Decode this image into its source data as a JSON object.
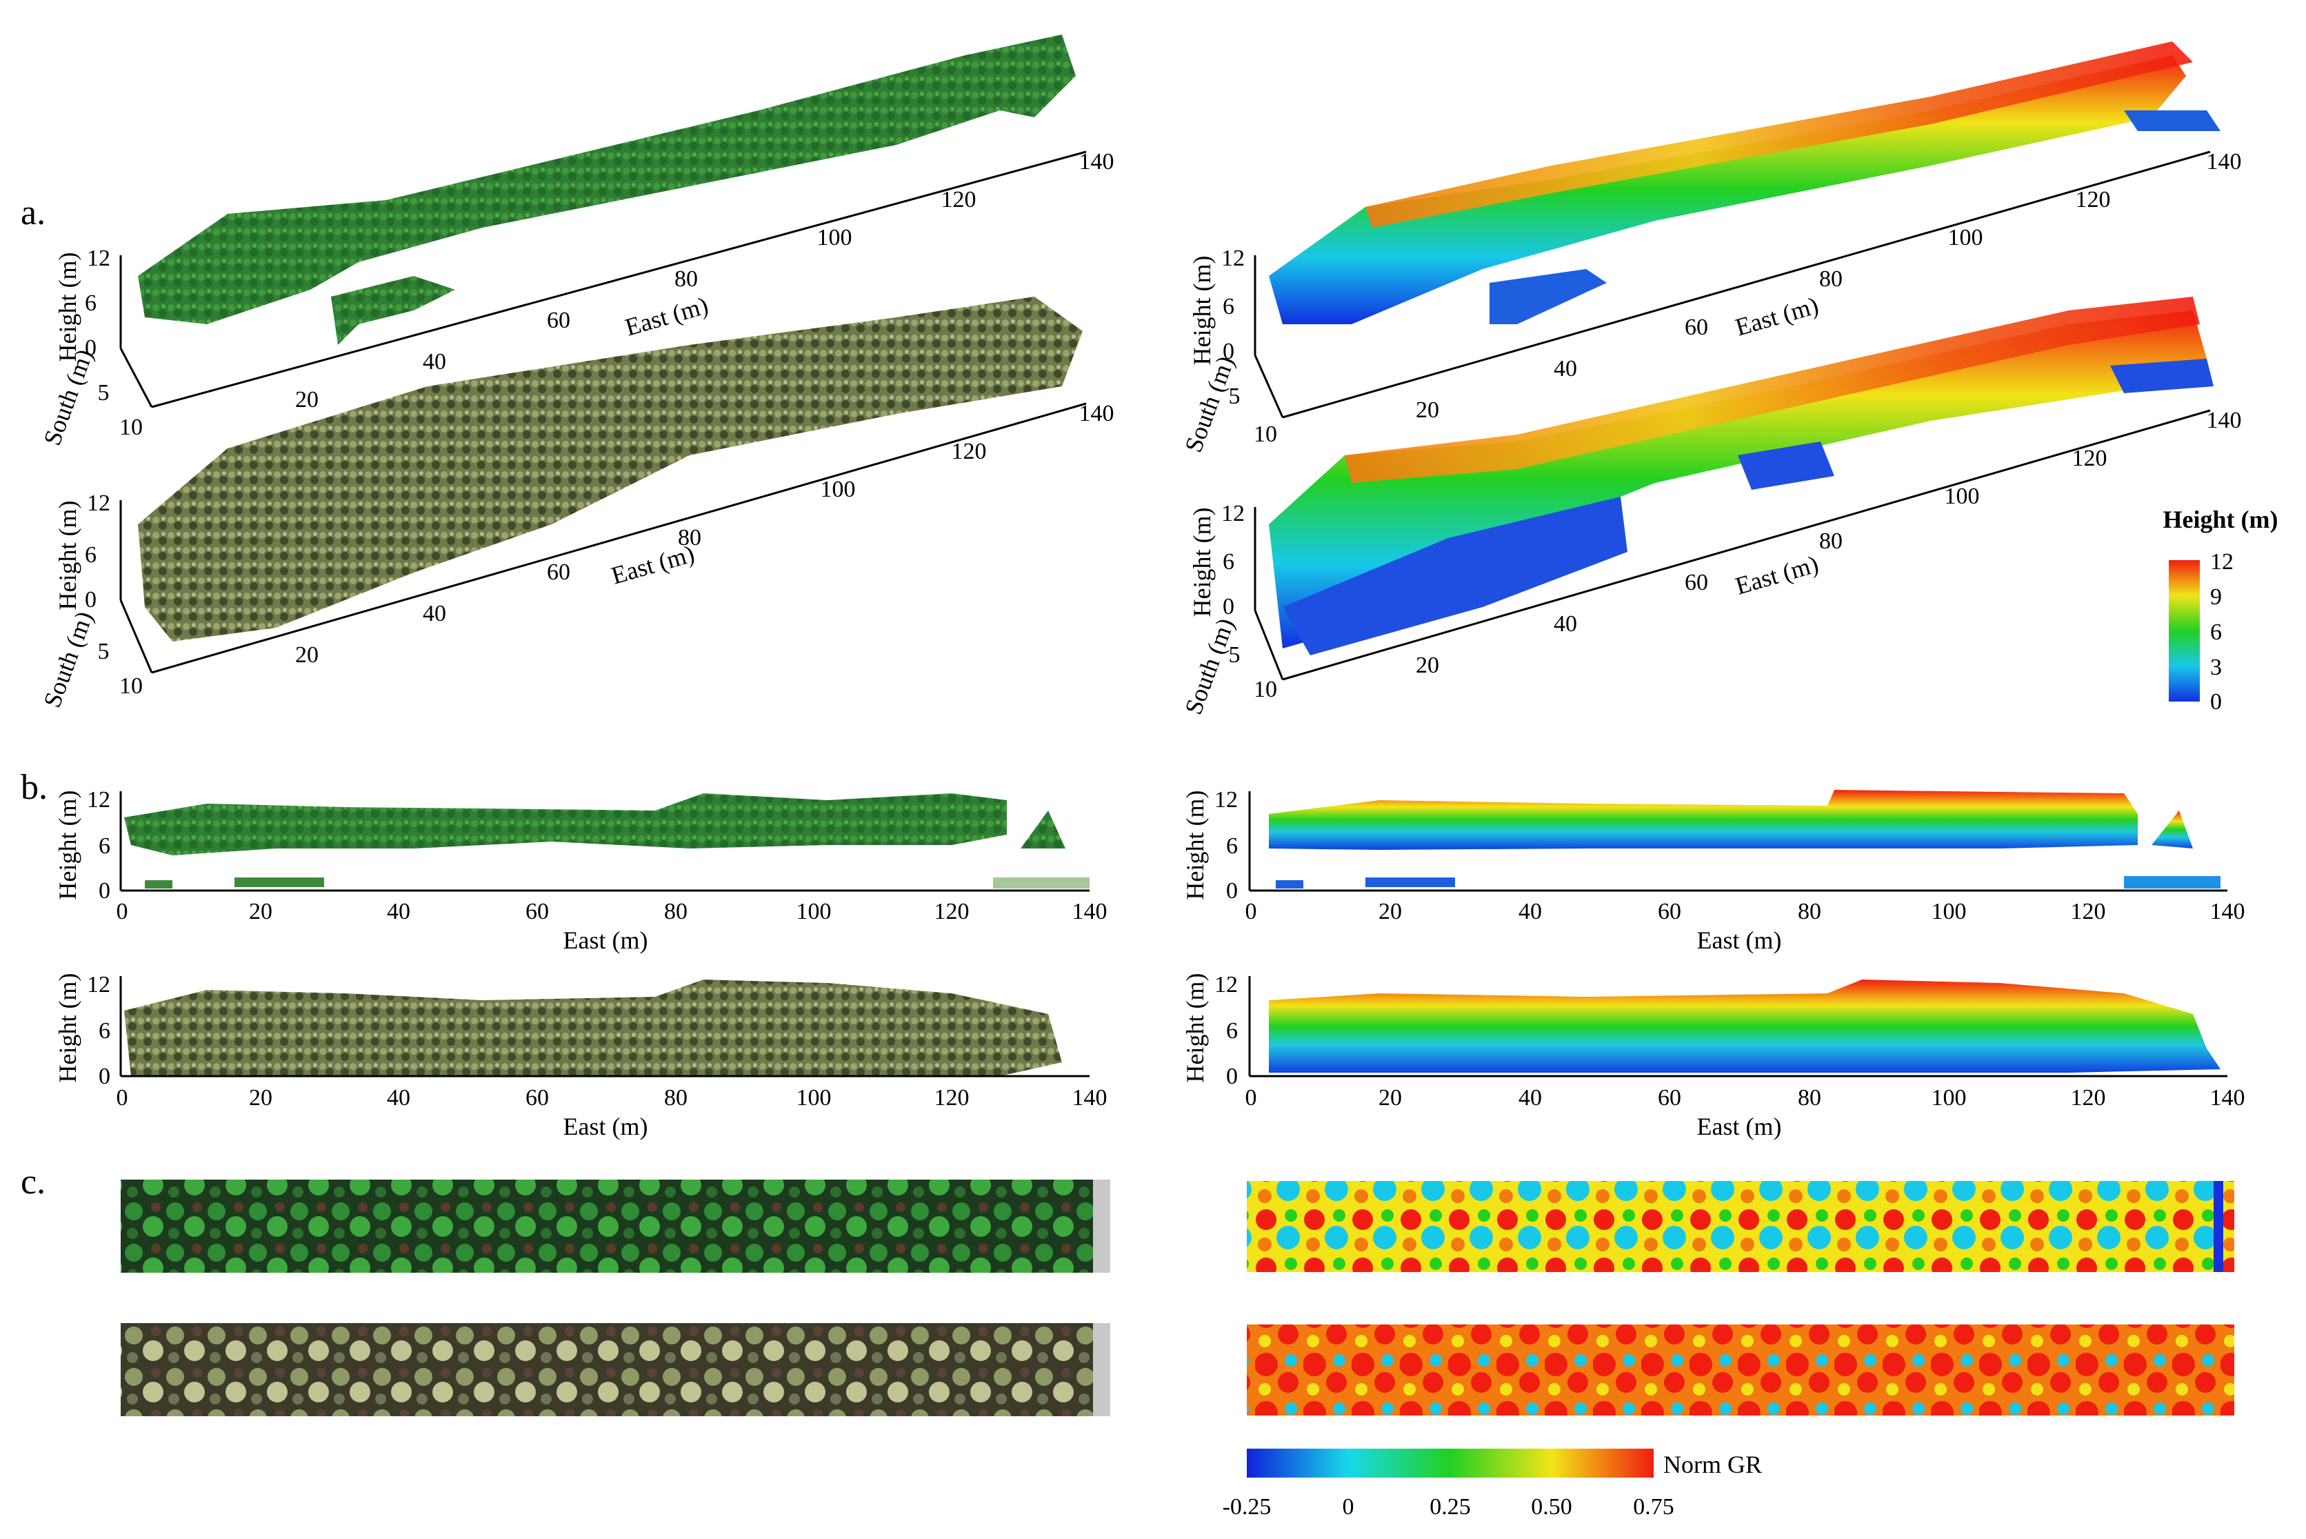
{
  "panels": {
    "a": "a.",
    "b": "b.",
    "c": "c."
  },
  "axes": {
    "east": "East (m)",
    "height": "Height (m)",
    "south": "South (m)"
  },
  "ticks_3d": {
    "east": [
      "20",
      "40",
      "60",
      "80",
      "100",
      "120",
      "140"
    ],
    "height": [
      "0",
      "6",
      "12"
    ],
    "south": [
      "5",
      "10"
    ]
  },
  "ticks_profile": {
    "east": [
      "0",
      "20",
      "40",
      "60",
      "80",
      "100",
      "120",
      "140"
    ],
    "height": [
      "0",
      "6",
      "12"
    ]
  },
  "height_colorbar": {
    "title": "Height (m)",
    "ticks": [
      "12",
      "9",
      "6",
      "3",
      "0"
    ]
  },
  "gr_colorbar": {
    "title": "Norm GR",
    "ticks": [
      "-0.25",
      "0",
      "0.25",
      "0.50",
      "0.75"
    ]
  },
  "colors": {
    "green_canopy": "#2e7d32",
    "olive_canopy": "#7a8a52",
    "height_low": "#1f3fd6",
    "height_mid": "#22c422",
    "height_high": "#f02a10"
  }
}
